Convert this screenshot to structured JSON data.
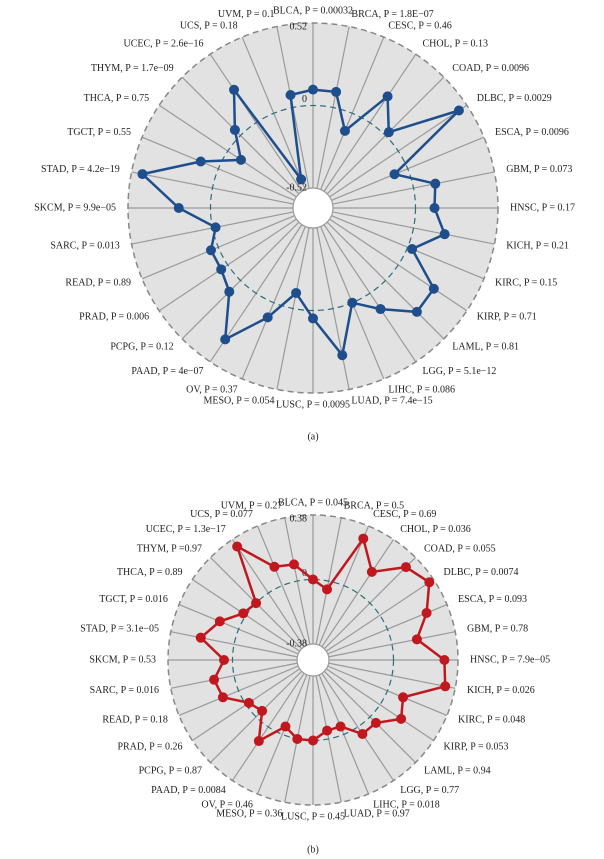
{
  "chart_data": [
    {
      "type": "radar",
      "caption": "(a)",
      "color": "#1f4e8c",
      "categories": [
        "BLCA, P = 0.00032",
        "BRCA, P = 1.8E−07",
        "CESC, P = 0.46",
        "CHOL, P = 0.13",
        "COAD, P = 0.0096",
        "DLBC, P = 0.0029",
        "ESCA, P = 0.0096",
        "GBM, P = 0.073",
        "HNSC, P = 0.17",
        "KICH, P = 0.21",
        "KIRC, P = 0.15",
        "KIRP, P = 0.71",
        "LAML, P = 0.81",
        "LGG, P = 5.1e−12",
        "LIHC, P = 0.086",
        "LUAD, P = 7.4e−15",
        "LUSC, P = 0.0095",
        "MESO, P = 0.054",
        "OV, P = 0.37",
        "PAAD, P = 4e−07",
        "PCPG, P = 0.12",
        "PRAD, P = 0.006",
        "READ, P = 0.89",
        "SARC, P = 0.013",
        "SKCM, P = 9.9e−05",
        "STAD, P = 4.2e−19",
        "TGCT, P = 0.55",
        "THCA, P = 0.75",
        "THYM, P = 1.7e−09",
        "UCEC, P = 2.6e−16",
        "UCS, P = 0.18",
        "UVM, P = 0.1"
      ],
      "values": [
        0.1,
        0.1,
        -0.12,
        0.2,
        0.03,
        0.46,
        -0.09,
        0.14,
        0.12,
        0.2,
        0.03,
        0.27,
        0.28,
        0.12,
        0.0,
        0.3,
        0.05,
        -0.1,
        0.1,
        0.35,
        0.1,
        0.05,
        0.05,
        -0.02,
        0.2,
        0.45,
        0.12,
        -0.1,
        0.05,
        0.25,
        -0.45,
        0.08
      ],
      "ylim": [
        -0.52,
        0.52
      ],
      "yticks": [
        -0.52,
        0,
        0.52
      ]
    },
    {
      "type": "radar",
      "caption": "(b)",
      "color": "#c0181e",
      "categories": [
        "BLCA, P = 0.045",
        "BRCA, P = 0.5",
        "CESC, P = 0.69",
        "CHOL, P = 0.036",
        "COAD, P = 0.055",
        "DLBC, P = 0.0074",
        "ESCA, P = 0.093",
        "GBM, P = 0.78",
        "HNSC, P = 7.9e−05",
        "KICH, P = 0.026",
        "KIRC, P = 0.048",
        "KIRP, P = 0.053",
        "LAML, P = 0.94",
        "LGG, P = 0.77",
        "LIHC, P = 0.018",
        "LUAD, P = 0.97",
        "LUSC, P = 0.45",
        "MESO, P = 0.36",
        "OV, P = 0.46",
        "PAAD, P = 0.0084",
        "PCPG, P = 0.87",
        "PRAD, P = 0.26",
        "READ, P = 0.18",
        "SARC, P = 0.016",
        "SKCM, P = 0.53",
        "STAD, P = 3.1e−05",
        "TGCT, P = 0.016",
        "THCA, P = 0.89",
        "THYM, P =0.97",
        "UCEC, P = 1.3e−17",
        "UCS, P = 0.077",
        "UVM, P = 0.27"
      ],
      "values": [
        0.0,
        -0.05,
        0.3,
        0.15,
        0.3,
        0.35,
        0.25,
        0.15,
        0.3,
        0.32,
        0.1,
        0.15,
        0.05,
        0.05,
        -0.05,
        -0.05,
        0.0,
        0.0,
        -0.05,
        0.1,
        -0.05,
        -0.02,
        0.1,
        0.12,
        0.05,
        0.2,
        0.12,
        0.02,
        0.0,
        0.33,
        0.12,
        0.1
      ],
      "ylim": [
        -0.38,
        0.38
      ],
      "yticks": [
        -0.38,
        0,
        0.38
      ]
    }
  ]
}
